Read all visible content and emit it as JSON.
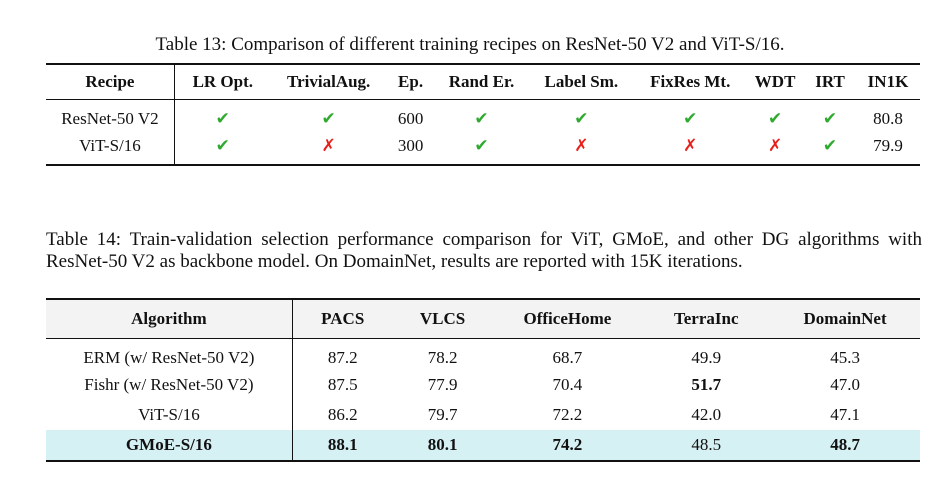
{
  "table13": {
    "caption": "Table 13: Comparison of different training recipes on ResNet-50 V2 and ViT-S/16.",
    "headers": [
      "Recipe",
      "LR Opt.",
      "TrivialAug.",
      "Ep.",
      "Rand Er.",
      "Label Sm.",
      "FixRes Mt.",
      "WDT",
      "IRT",
      "IN1K"
    ],
    "rows": [
      {
        "recipe": "ResNet-50 V2",
        "lr_opt": "✔",
        "trivialaug": "✔",
        "ep": "600",
        "rand_er": "✔",
        "label_sm": "✔",
        "fixres_mt": "✔",
        "wdt": "✔",
        "irt": "✔",
        "in1k": "80.8"
      },
      {
        "recipe": "ViT-S/16",
        "lr_opt": "✔",
        "trivialaug": "✗",
        "ep": "300",
        "rand_er": "✔",
        "label_sm": "✗",
        "fixres_mt": "✗",
        "wdt": "✗",
        "irt": "✔",
        "in1k": "79.9"
      }
    ]
  },
  "table14": {
    "caption": "Table 14: Train-validation selection performance comparison for ViT, GMoE, and other DG algorithms with ResNet-50 V2 as backbone model. On DomainNet, results are reported with 15K iterations.",
    "headers": [
      "Algorithm",
      "PACS",
      "VLCS",
      "OfficeHome",
      "TerraInc",
      "DomainNet"
    ],
    "rows": [
      {
        "algorithm": "ERM (w/ ResNet-50 V2)",
        "pacs": "87.2",
        "vlcs": "78.2",
        "officehome": "68.7",
        "terrainc": "49.9",
        "domainnet": "45.3"
      },
      {
        "algorithm": "Fishr (w/ ResNet-50 V2)",
        "pacs": "87.5",
        "vlcs": "77.9",
        "officehome": "70.4",
        "terrainc": "51.7",
        "domainnet": "47.0"
      },
      {
        "algorithm": "ViT-S/16",
        "pacs": "86.2",
        "vlcs": "79.7",
        "officehome": "72.2",
        "terrainc": "42.0",
        "domainnet": "47.1"
      },
      {
        "algorithm": "GMoE-S/16",
        "pacs": "88.1",
        "vlcs": "80.1",
        "officehome": "74.2",
        "terrainc": "48.5",
        "domainnet": "48.7"
      }
    ],
    "highlight_color": "#d6f1f4"
  },
  "colors": {
    "check": "#2faa2f",
    "cross": "#e8201c"
  }
}
